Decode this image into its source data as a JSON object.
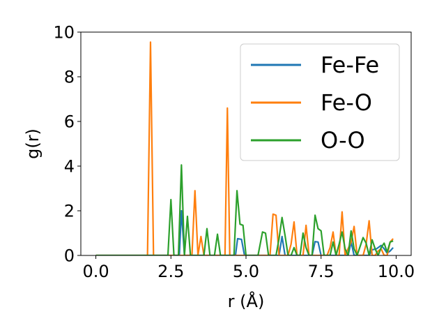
{
  "chart_data": {
    "type": "line",
    "title": "",
    "xlabel": "r (Å)",
    "ylabel": "g(r)",
    "xlim": [
      -0.5,
      10.5
    ],
    "ylim": [
      0,
      10
    ],
    "xticks": [
      0.0,
      2.5,
      5.0,
      7.5,
      10.0
    ],
    "xtick_labels": [
      "0.0",
      "2.5",
      "5.0",
      "7.5",
      "10.0"
    ],
    "yticks": [
      0,
      2,
      4,
      6,
      8,
      10
    ],
    "ytick_labels": [
      "0",
      "2",
      "4",
      "6",
      "8",
      "10"
    ],
    "grid": false,
    "legend_position": "top-right",
    "series": [
      {
        "name": "Fe-Fe",
        "color": "#1f77b4",
        "points": [
          [
            0.0,
            0
          ],
          [
            2.68,
            0
          ],
          [
            2.78,
            0
          ],
          [
            2.85,
            2.0
          ],
          [
            2.95,
            0
          ],
          [
            3.0,
            0
          ],
          [
            4.65,
            0
          ],
          [
            4.72,
            0.75
          ],
          [
            4.85,
            0.72
          ],
          [
            4.95,
            0
          ],
          [
            6.1,
            0
          ],
          [
            6.2,
            0.85
          ],
          [
            6.3,
            0
          ],
          [
            7.2,
            0
          ],
          [
            7.3,
            0.62
          ],
          [
            7.4,
            0.6
          ],
          [
            7.5,
            0
          ],
          [
            8.4,
            0
          ],
          [
            8.5,
            0.6
          ],
          [
            8.6,
            0
          ],
          [
            9.1,
            0
          ],
          [
            9.2,
            0.25
          ],
          [
            9.35,
            0.3
          ],
          [
            9.5,
            0.45
          ],
          [
            9.6,
            0.3
          ],
          [
            9.7,
            0.1
          ],
          [
            9.8,
            0.2
          ],
          [
            9.9,
            0.35
          ]
        ]
      },
      {
        "name": "Fe-O",
        "color": "#ff7f0e",
        "points": [
          [
            0.0,
            0
          ],
          [
            1.72,
            0
          ],
          [
            1.82,
            9.55
          ],
          [
            1.92,
            0
          ],
          [
            3.2,
            0
          ],
          [
            3.3,
            2.9
          ],
          [
            3.4,
            0
          ],
          [
            3.5,
            0.85
          ],
          [
            3.6,
            0
          ],
          [
            4.3,
            0
          ],
          [
            4.38,
            6.6
          ],
          [
            4.46,
            0
          ],
          [
            5.0,
            0
          ],
          [
            5.8,
            0
          ],
          [
            5.9,
            1.85
          ],
          [
            6.0,
            1.8
          ],
          [
            6.1,
            0
          ],
          [
            6.4,
            0
          ],
          [
            6.5,
            0.5
          ],
          [
            6.6,
            1.5
          ],
          [
            6.7,
            0
          ],
          [
            6.9,
            0
          ],
          [
            7.0,
            1.35
          ],
          [
            7.1,
            0
          ],
          [
            7.7,
            0
          ],
          [
            7.8,
            0.35
          ],
          [
            7.9,
            1.05
          ],
          [
            8.0,
            0
          ],
          [
            8.1,
            0
          ],
          [
            8.2,
            1.95
          ],
          [
            8.3,
            0
          ],
          [
            8.5,
            0.6
          ],
          [
            8.6,
            1.3
          ],
          [
            8.7,
            0
          ],
          [
            8.9,
            0
          ],
          [
            9.0,
            0.5
          ],
          [
            9.1,
            1.55
          ],
          [
            9.2,
            0
          ],
          [
            9.3,
            0
          ],
          [
            9.4,
            0.2
          ],
          [
            9.5,
            0.3
          ],
          [
            9.6,
            0
          ],
          [
            9.7,
            0
          ],
          [
            9.8,
            0.6
          ],
          [
            9.9,
            0.75
          ]
        ]
      },
      {
        "name": "O-O",
        "color": "#2ca02c",
        "points": [
          [
            0.0,
            0
          ],
          [
            2.4,
            0
          ],
          [
            2.5,
            2.5
          ],
          [
            2.6,
            0
          ],
          [
            2.75,
            0
          ],
          [
            2.85,
            4.05
          ],
          [
            2.95,
            0
          ],
          [
            3.05,
            1.75
          ],
          [
            3.15,
            0
          ],
          [
            3.6,
            0
          ],
          [
            3.7,
            1.2
          ],
          [
            3.8,
            0
          ],
          [
            3.95,
            0
          ],
          [
            4.05,
            0.95
          ],
          [
            4.15,
            0
          ],
          [
            4.6,
            0
          ],
          [
            4.7,
            2.9
          ],
          [
            4.8,
            1.4
          ],
          [
            4.9,
            1.35
          ],
          [
            5.0,
            0
          ],
          [
            5.4,
            0
          ],
          [
            5.55,
            1.05
          ],
          [
            5.65,
            1.0
          ],
          [
            5.75,
            0
          ],
          [
            6.0,
            0
          ],
          [
            6.1,
            0.75
          ],
          [
            6.2,
            1.7
          ],
          [
            6.3,
            0.9
          ],
          [
            6.4,
            0
          ],
          [
            6.5,
            0
          ],
          [
            6.6,
            0.35
          ],
          [
            6.7,
            0
          ],
          [
            6.8,
            0
          ],
          [
            6.9,
            1.0
          ],
          [
            7.0,
            0.35
          ],
          [
            7.1,
            0
          ],
          [
            7.2,
            0
          ],
          [
            7.3,
            1.8
          ],
          [
            7.4,
            1.2
          ],
          [
            7.5,
            1.1
          ],
          [
            7.6,
            0
          ],
          [
            7.8,
            0
          ],
          [
            7.9,
            0.6
          ],
          [
            8.0,
            0
          ],
          [
            8.1,
            0.5
          ],
          [
            8.2,
            1.05
          ],
          [
            8.3,
            0.3
          ],
          [
            8.4,
            0
          ],
          [
            8.5,
            1.1
          ],
          [
            8.6,
            0.3
          ],
          [
            8.7,
            0
          ],
          [
            8.9,
            0.8
          ],
          [
            9.0,
            0.55
          ],
          [
            9.1,
            0
          ],
          [
            9.2,
            0.7
          ],
          [
            9.3,
            0.3
          ],
          [
            9.4,
            0
          ],
          [
            9.5,
            0.35
          ],
          [
            9.6,
            0.55
          ],
          [
            9.7,
            0.15
          ],
          [
            9.8,
            0.6
          ],
          [
            9.9,
            0.65
          ]
        ]
      }
    ]
  }
}
